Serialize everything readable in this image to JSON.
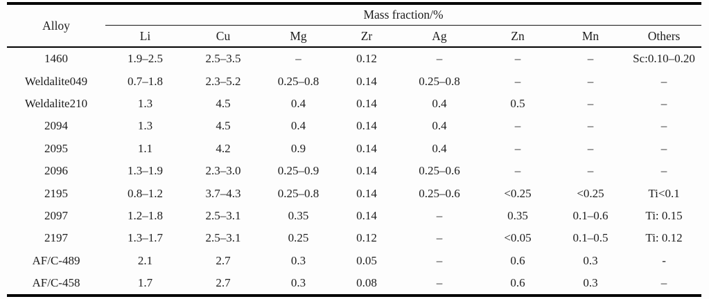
{
  "chart_data": {
    "type": "table",
    "corner_header": "Alloy",
    "group_header": "Mass fraction/%",
    "columns": [
      "Li",
      "Cu",
      "Mg",
      "Zr",
      "Ag",
      "Zn",
      "Mn",
      "Others"
    ],
    "rows": [
      {
        "alloy": "1460",
        "values": [
          "1.9–2.5",
          "2.5–3.5",
          "–",
          "0.12",
          "–",
          "–",
          "–",
          "Sc:0.10–0.20"
        ]
      },
      {
        "alloy": "Weldalite049",
        "values": [
          "0.7–1.8",
          "2.3–5.2",
          "0.25–0.8",
          "0.14",
          "0.25–0.8",
          "–",
          "–",
          "–"
        ]
      },
      {
        "alloy": "Weldalite210",
        "values": [
          "1.3",
          "4.5",
          "0.4",
          "0.14",
          "0.4",
          "0.5",
          "–",
          "–"
        ]
      },
      {
        "alloy": "2094",
        "values": [
          "1.3",
          "4.5",
          "0.4",
          "0.14",
          "0.4",
          "–",
          "–",
          "–"
        ]
      },
      {
        "alloy": "2095",
        "values": [
          "1.1",
          "4.2",
          "0.9",
          "0.14",
          "0.4",
          "–",
          "–",
          "–"
        ]
      },
      {
        "alloy": "2096",
        "values": [
          "1.3–1.9",
          "2.3–3.0",
          "0.25–0.9",
          "0.14",
          "0.25–0.6",
          "–",
          "–",
          "–"
        ]
      },
      {
        "alloy": "2195",
        "values": [
          "0.8–1.2",
          "3.7–4.3",
          "0.25–0.8",
          "0.14",
          "0.25–0.6",
          "<0.25",
          "<0.25",
          "Ti<0.1"
        ]
      },
      {
        "alloy": "2097",
        "values": [
          "1.2–1.8",
          "2.5–3.1",
          "0.35",
          "0.14",
          "–",
          "0.35",
          "0.1–0.6",
          "Ti: 0.15"
        ]
      },
      {
        "alloy": "2197",
        "values": [
          "1.3–1.7",
          "2.5–3.1",
          "0.25",
          "0.12",
          "–",
          "<0.05",
          "0.1–0.5",
          "Ti: 0.12"
        ]
      },
      {
        "alloy": "AF/C-489",
        "values": [
          "2.1",
          "2.7",
          "0.3",
          "0.05",
          "–",
          "0.6",
          "0.3",
          "-"
        ]
      },
      {
        "alloy": "AF/C-458",
        "values": [
          "1.7",
          "2.7",
          "0.3",
          "0.08",
          "–",
          "0.6",
          "0.3",
          "–"
        ]
      }
    ]
  },
  "colors": {
    "text": "#1c1c1c",
    "rule": "#000000",
    "background": "#fdfdfd"
  }
}
